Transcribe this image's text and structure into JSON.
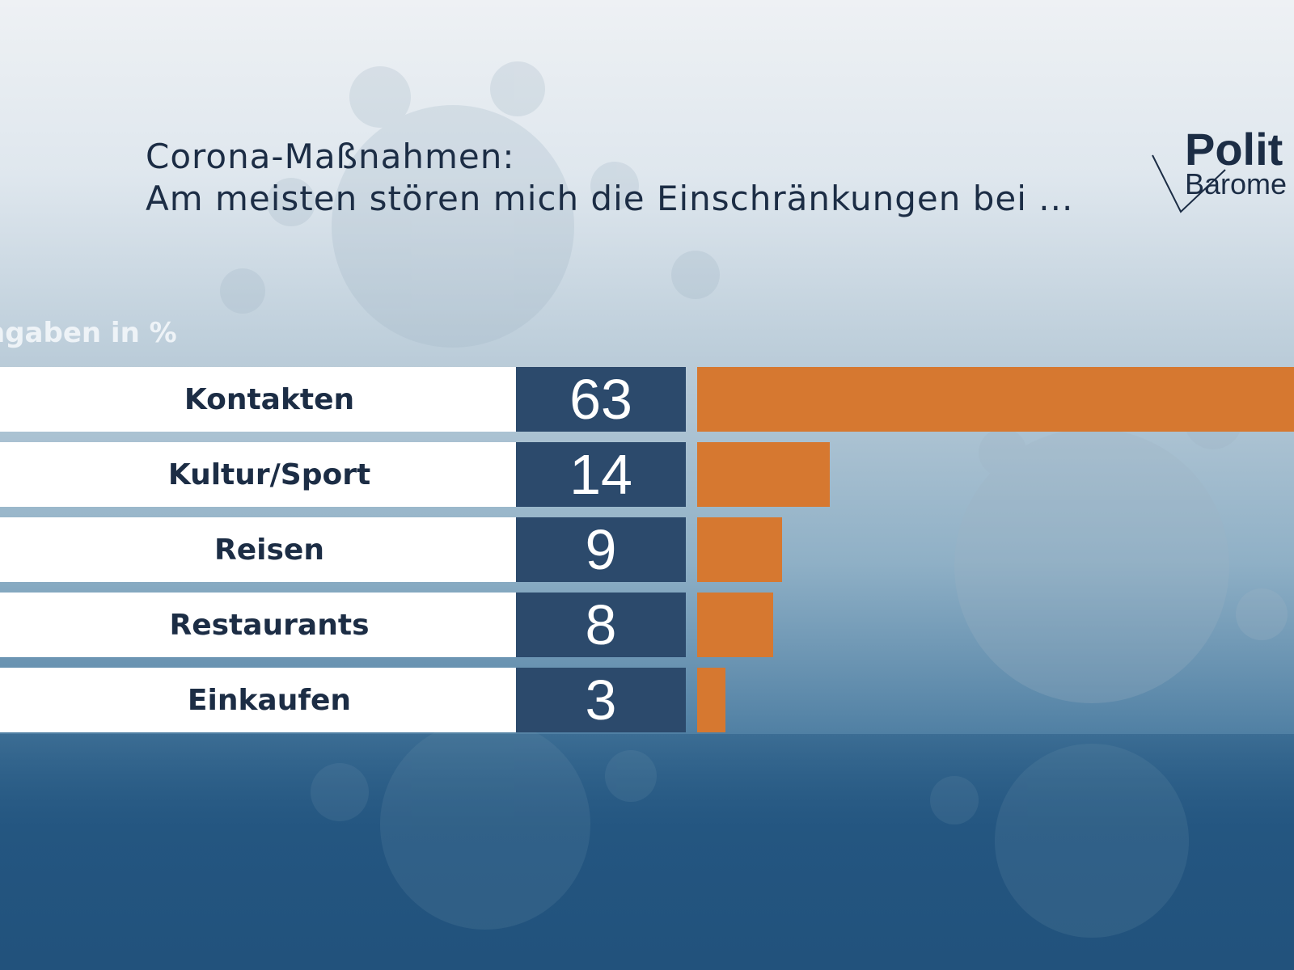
{
  "title": {
    "line1": "Corona-Maßnahmen:",
    "line2": "Am meisten stören mich die Einschränkungen bei ..."
  },
  "logo": {
    "word1": "Polit",
    "word2": "Barome"
  },
  "colors": {
    "bar": "#d67830",
    "value_box": "#2c4a6c",
    "label_box": "#ffffff",
    "text": "#1c2d45"
  },
  "chart_data": {
    "type": "bar",
    "orientation": "horizontal",
    "title": "Corona-Maßnahmen: Am meisten stören mich die Einschränkungen bei ...",
    "unit_label": "ngaben in %",
    "categories": [
      "Kontakten",
      "Kultur/Sport",
      "Reisen",
      "Restaurants",
      "Einkaufen"
    ],
    "values": [
      63,
      14,
      9,
      8,
      3
    ],
    "xlim": [
      0,
      63
    ]
  }
}
